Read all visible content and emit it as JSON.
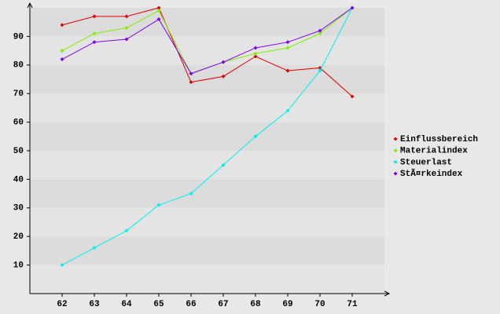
{
  "chart_data": {
    "type": "line",
    "categories": [
      "62",
      "63",
      "64",
      "65",
      "66",
      "67",
      "68",
      "69",
      "70",
      "71"
    ],
    "series": [
      {
        "name": "Einflussbereich",
        "color": "#e00000",
        "values": [
          94,
          97,
          97,
          100,
          74,
          76,
          83,
          78,
          79,
          69
        ]
      },
      {
        "name": "Materialindex",
        "color": "#80f000",
        "values": [
          85,
          91,
          93,
          99,
          77,
          81,
          84,
          86,
          91,
          100
        ]
      },
      {
        "name": "Steuerlast",
        "color": "#00f0f0",
        "values": [
          10,
          16,
          22,
          31,
          35,
          45,
          55,
          64,
          78,
          100
        ]
      },
      {
        "name": "StÃ¤rkeindex",
        "color": "#8000f0",
        "values": [
          82,
          88,
          89,
          96,
          77,
          81,
          86,
          88,
          92,
          100
        ]
      }
    ],
    "ylim": [
      0,
      100
    ],
    "yticks": [
      10,
      20,
      30,
      40,
      50,
      60,
      70,
      80,
      90
    ],
    "grid": true,
    "legend": "right"
  }
}
